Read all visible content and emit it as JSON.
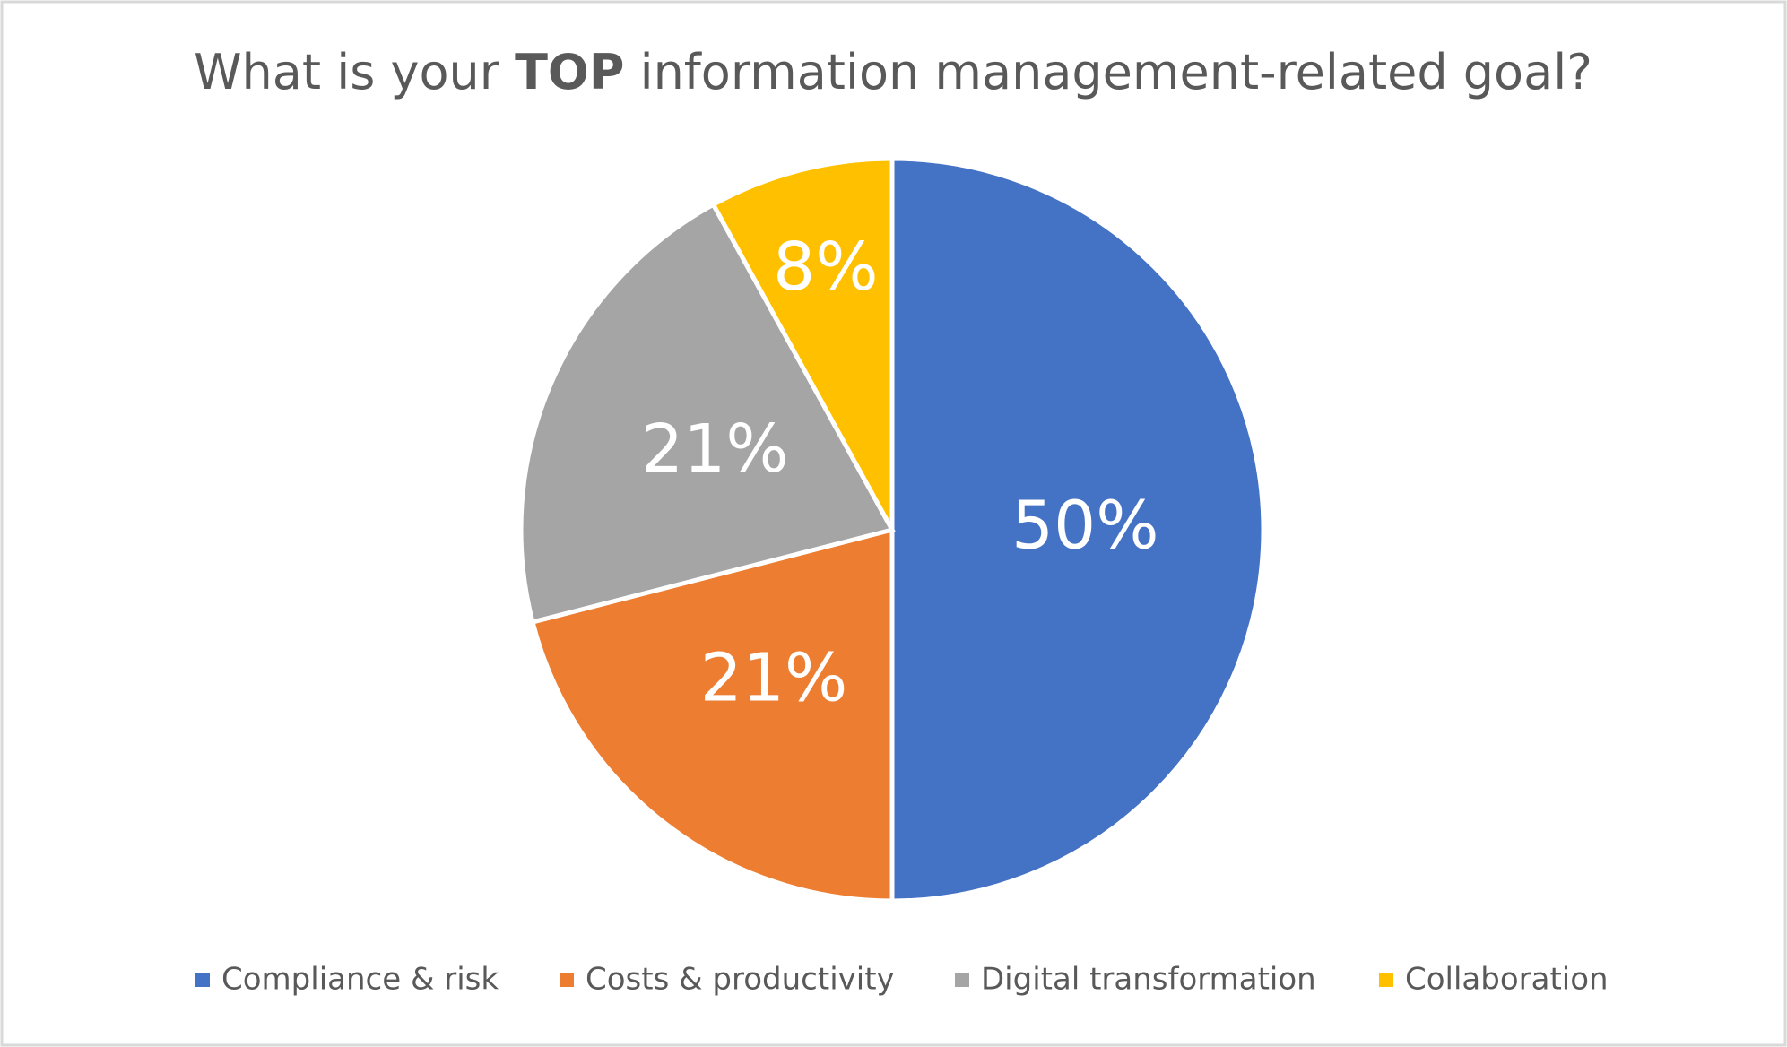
{
  "chart_data": {
    "type": "pie",
    "title": [
      "What is your ",
      "TOP",
      " information management-related goal?"
    ],
    "categories": [
      "Compliance & risk",
      "Costs & productivity",
      "Digital transformation",
      "Collaboration"
    ],
    "values": [
      50,
      21,
      21,
      8
    ],
    "value_labels": [
      "50%",
      "21%",
      "21%",
      "8%"
    ],
    "colors": [
      "#4472c4",
      "#ed7d31",
      "#a5a5a5",
      "#ffc000"
    ],
    "legend": "bottom"
  }
}
